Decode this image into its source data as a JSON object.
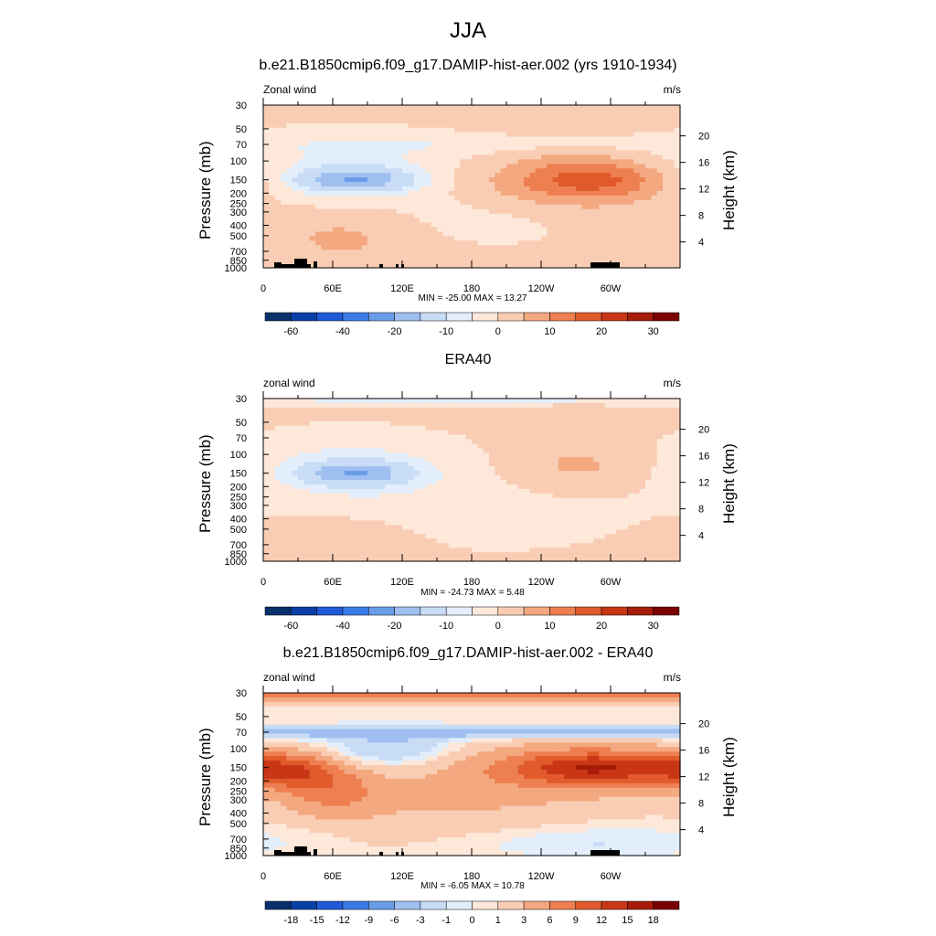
{
  "figure_title": "JJA",
  "palette_main": [
    "#08306b",
    "#0b3fa8",
    "#1e5ad6",
    "#3b7be8",
    "#6a9de8",
    "#9fbff0",
    "#c8dcf6",
    "#e2eefb",
    "#fde8da",
    "#f9cdb3",
    "#f4a880",
    "#ee7f50",
    "#e05a2c",
    "#c83616",
    "#a61c08",
    "#7a0000"
  ],
  "chart_data": [
    {
      "type": "heatmap",
      "title": "b.e21.B1850cmip6.f09_g17.DAMIP-hist-aer.002 (yrs 1910-1934)",
      "variable_label": "Zonal wind",
      "units": "m/s",
      "ylabel": "Pressure (mb)",
      "ylabel_right": "Height (km)",
      "stats": "MIN = -25.00  MAX =  13.27",
      "x_ticks": [
        "0",
        "60E",
        "120E",
        "180",
        "120W",
        "60W"
      ],
      "y_ticks": [
        "30",
        "50",
        "70",
        "100",
        "150",
        "200",
        "250",
        "300",
        "400",
        "500",
        "700",
        "850",
        "1000"
      ],
      "height_ticks": [
        "20",
        "16",
        "12",
        "8",
        "4"
      ],
      "colorbar_labels": [
        "-60",
        "-40",
        "-20",
        "-10",
        "0",
        "10",
        "20",
        "30"
      ],
      "features": [
        {
          "lon": 80,
          "p": 150,
          "value": -25,
          "sx": 32,
          "sy": 0.17
        },
        {
          "lon": 75,
          "p": 130,
          "value": -9,
          "sx": 75,
          "sy": 0.55
        },
        {
          "lon": 290,
          "p": 150,
          "value": 13,
          "sx": 45,
          "sy": 0.3
        },
        {
          "lon": 240,
          "p": 170,
          "value": 6,
          "sx": 75,
          "sy": 0.55
        },
        {
          "lon": 70,
          "p": 500,
          "value": 5,
          "sx": 45,
          "sy": 0.5
        },
        {
          "lon": 200,
          "p": 350,
          "value": -4,
          "sx": 60,
          "sy": 0.4
        },
        {
          "lon": 180,
          "p": 70,
          "value": -4,
          "sx": 130,
          "sy": 0.15
        }
      ],
      "baseline": 1.2
    },
    {
      "type": "heatmap",
      "title": "ERA40",
      "variable_label": "zonal wind",
      "units": "m/s",
      "ylabel": "Pressure (mb)",
      "ylabel_right": "Height (km)",
      "stats": "MIN = -24.73  MAX =   5.48",
      "x_ticks": [
        "0",
        "60E",
        "120E",
        "180",
        "120W",
        "60W"
      ],
      "y_ticks": [
        "30",
        "50",
        "70",
        "100",
        "150",
        "200",
        "250",
        "300",
        "400",
        "500",
        "700",
        "850",
        "1000"
      ],
      "height_ticks": [
        "20",
        "16",
        "12",
        "8",
        "4"
      ],
      "colorbar_labels": [
        "-60",
        "-40",
        "-20",
        "-10",
        "0",
        "10",
        "20",
        "30"
      ],
      "features": [
        {
          "lon": 80,
          "p": 150,
          "value": -24,
          "sx": 30,
          "sy": 0.17
        },
        {
          "lon": 75,
          "p": 140,
          "value": -9,
          "sx": 72,
          "sy": 0.55
        },
        {
          "lon": 280,
          "p": 130,
          "value": 5,
          "sx": 45,
          "sy": 0.35
        },
        {
          "lon": 200,
          "p": 400,
          "value": -4,
          "sx": 80,
          "sy": 0.5
        },
        {
          "lon": 180,
          "p": 30,
          "value": -8,
          "sx": 400,
          "sy": 0.08
        },
        {
          "lon": 80,
          "p": 600,
          "value": 3,
          "sx": 40,
          "sy": 0.3
        }
      ],
      "baseline": 1.5
    },
    {
      "type": "heatmap",
      "title": "b.e21.B1850cmip6.f09_g17.DAMIP-hist-aer.002 - ERA40",
      "variable_label": "zonal wind",
      "units": "m/s",
      "ylabel": "Pressure (mb)",
      "ylabel_right": "Height (km)",
      "stats": "MIN =  -6.05  MAX =  10.78",
      "x_ticks": [
        "0",
        "60E",
        "120E",
        "180",
        "120W",
        "60W"
      ],
      "y_ticks": [
        "30",
        "50",
        "70",
        "100",
        "150",
        "200",
        "250",
        "300",
        "400",
        "500",
        "700",
        "850",
        "1000"
      ],
      "height_ticks": [
        "20",
        "16",
        "12",
        "8",
        "4"
      ],
      "colorbar_labels": [
        "-18",
        "-15",
        "-12",
        "-9",
        "-6",
        "-3",
        "-1",
        "0",
        "1",
        "3",
        "6",
        "9",
        "12",
        "15",
        "18"
      ],
      "features": [
        {
          "lon": 180,
          "p": 32,
          "value": 8,
          "sx": 500,
          "sy": 0.08
        },
        {
          "lon": 180,
          "p": 70,
          "value": -5,
          "sx": 500,
          "sy": 0.1
        },
        {
          "lon": 110,
          "p": 100,
          "value": -4,
          "sx": 40,
          "sy": 0.3
        },
        {
          "lon": 20,
          "p": 160,
          "value": 9,
          "sx": 30,
          "sy": 0.25
        },
        {
          "lon": 60,
          "p": 250,
          "value": 6,
          "sx": 30,
          "sy": 0.35
        },
        {
          "lon": 290,
          "p": 150,
          "value": 10,
          "sx": 50,
          "sy": 0.25
        },
        {
          "lon": 260,
          "p": 160,
          "value": 5,
          "sx": 80,
          "sy": 0.4
        },
        {
          "lon": 160,
          "p": 350,
          "value": 2,
          "sx": 80,
          "sy": 0.5
        },
        {
          "lon": 280,
          "p": 750,
          "value": -2,
          "sx": 80,
          "sy": 0.25
        }
      ],
      "baseline": 0.8
    }
  ]
}
